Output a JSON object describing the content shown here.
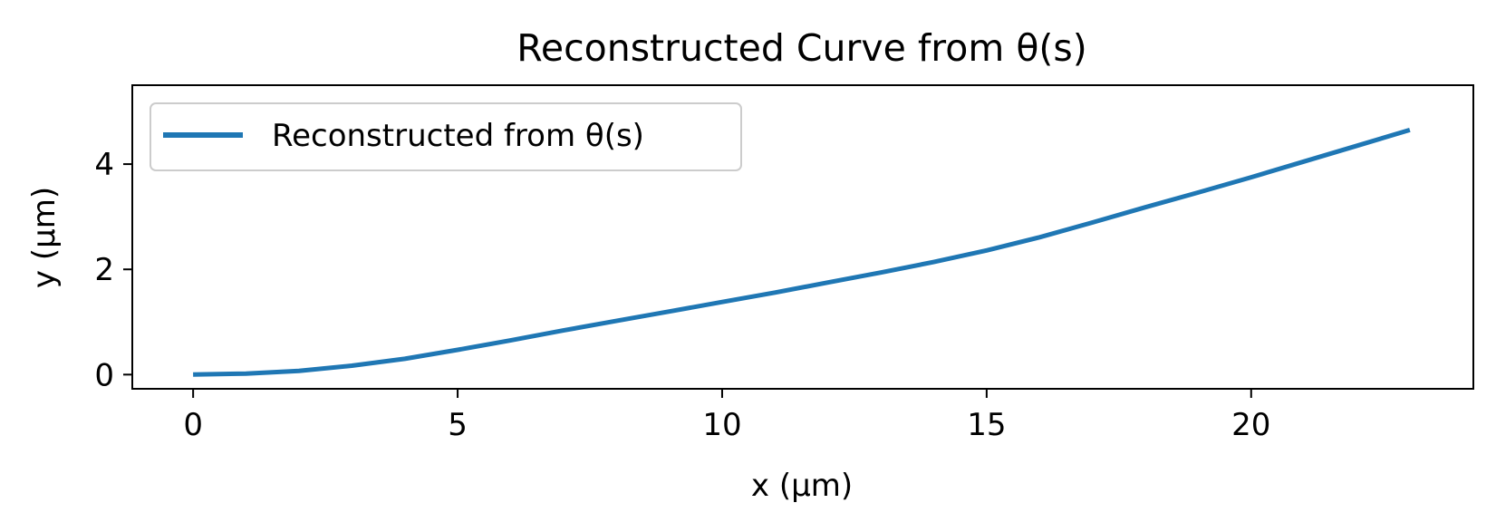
{
  "chart_data": {
    "type": "line",
    "title": "Reconstructed Curve from θ(s)",
    "xlabel": "x (µm)",
    "ylabel": "y (µm)",
    "xlim": [
      -1.15,
      24.2
    ],
    "ylim": [
      -0.27,
      5.5
    ],
    "xticks": [
      0,
      5,
      10,
      15,
      20
    ],
    "yticks": [
      0,
      2,
      4
    ],
    "grid": false,
    "legend_position": "upper-left",
    "series": [
      {
        "name": "Reconstructed from θ(s)",
        "color": "#1f77b4",
        "points": [
          [
            0,
            0
          ],
          [
            1,
            0.02
          ],
          [
            2,
            0.07
          ],
          [
            3,
            0.17
          ],
          [
            4,
            0.3
          ],
          [
            5,
            0.47
          ],
          [
            6,
            0.65
          ],
          [
            7,
            0.84
          ],
          [
            8,
            1.02
          ],
          [
            9,
            1.2
          ],
          [
            10,
            1.38
          ],
          [
            11,
            1.56
          ],
          [
            12,
            1.75
          ],
          [
            13,
            1.94
          ],
          [
            14,
            2.14
          ],
          [
            15,
            2.36
          ],
          [
            16,
            2.61
          ],
          [
            17,
            2.89
          ],
          [
            18,
            3.18
          ],
          [
            19,
            3.46
          ],
          [
            20,
            3.75
          ],
          [
            21,
            4.05
          ],
          [
            22,
            4.35
          ],
          [
            23,
            4.65
          ]
        ]
      }
    ]
  }
}
